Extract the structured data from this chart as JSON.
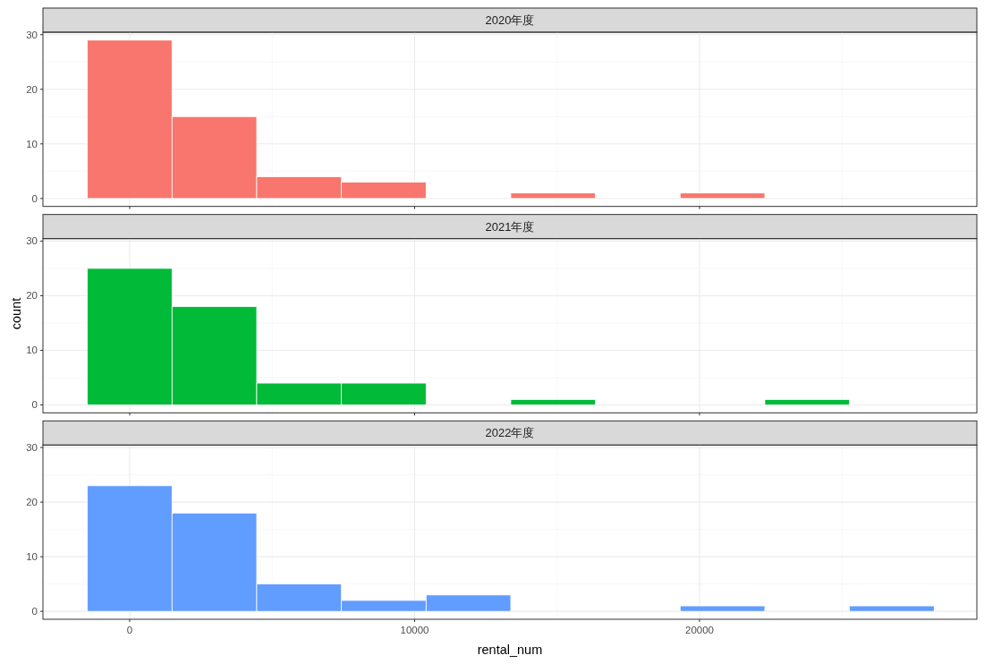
{
  "chart_data": [
    {
      "type": "histogram",
      "title": "2020年度",
      "bins": [
        -1486,
        1486,
        4458,
        7431,
        10403,
        13375,
        16347,
        19319,
        22292,
        25264,
        28236
      ],
      "values": [
        29,
        15,
        4,
        3,
        0,
        1,
        0,
        1,
        0,
        0
      ],
      "color": "#f8766d",
      "xlim": [
        -3045,
        29733
      ],
      "xticks": [
        0,
        10000,
        20000
      ],
      "ylim": [
        -1.45,
        30.45
      ],
      "yticks": [
        0,
        10,
        20,
        30
      ],
      "grid": true,
      "tick_labels": "y"
    },
    {
      "type": "histogram",
      "title": "2021年度",
      "ylabel": "count",
      "bins": [
        -1486,
        1486,
        4458,
        7431,
        10403,
        13375,
        16347,
        19319,
        22292,
        25264,
        28236
      ],
      "values": [
        25,
        18,
        4,
        4,
        0,
        1,
        0,
        0,
        1,
        0
      ],
      "color": "#00ba38",
      "xlim": [
        -3045,
        29733
      ],
      "xticks": [
        0,
        10000,
        20000
      ],
      "ylim": [
        -1.45,
        30.45
      ],
      "yticks": [
        0,
        10,
        20,
        30
      ],
      "grid": true,
      "tick_labels": "y"
    },
    {
      "type": "histogram",
      "title": "2022年度",
      "xlabel": "rental_num",
      "bins": [
        -1486,
        1486,
        4458,
        7431,
        10403,
        13375,
        16347,
        19319,
        22292,
        25264,
        28236
      ],
      "values": [
        23,
        18,
        5,
        2,
        3,
        0,
        0,
        1,
        0,
        1
      ],
      "color": "#619cff",
      "xlim": [
        -3045,
        29733
      ],
      "xticks": [
        0,
        10000,
        20000
      ],
      "ylim": [
        -1.45,
        30.45
      ],
      "yticks": [
        0,
        10,
        20,
        30
      ],
      "grid": true
    }
  ]
}
